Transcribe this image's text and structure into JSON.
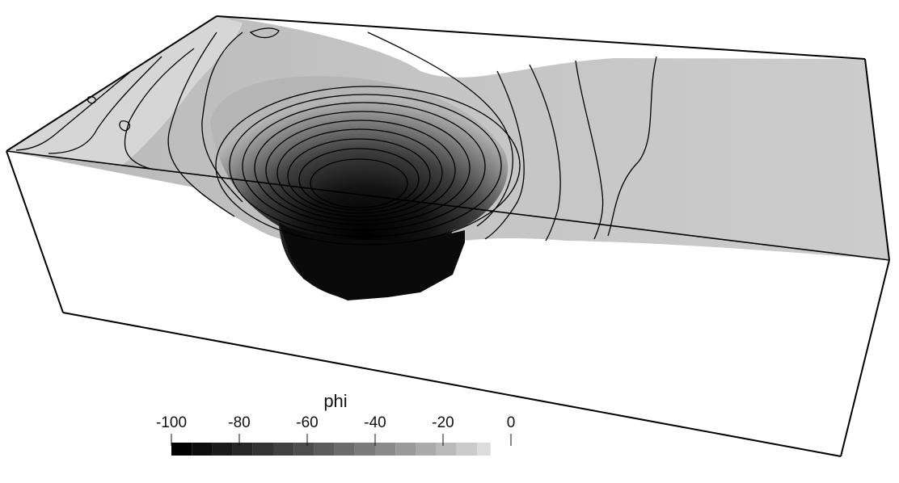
{
  "colorbar": {
    "title": "phi",
    "range": [
      -100,
      0
    ],
    "ticks": [
      {
        "value": -100,
        "label": "-100"
      },
      {
        "value": -80,
        "label": "-80"
      },
      {
        "value": -60,
        "label": "-60"
      },
      {
        "value": -40,
        "label": "-40"
      },
      {
        "value": -20,
        "label": "-20"
      },
      {
        "value": 0,
        "label": "0"
      }
    ],
    "bands": [
      {
        "from": -100,
        "to": -94,
        "color": "#000000"
      },
      {
        "from": -94,
        "to": -88,
        "color": "#0d0d0d"
      },
      {
        "from": -88,
        "to": -82,
        "color": "#1a1a1a"
      },
      {
        "from": -82,
        "to": -76,
        "color": "#262626"
      },
      {
        "from": -76,
        "to": -70,
        "color": "#333333"
      },
      {
        "from": -70,
        "to": -64,
        "color": "#404040"
      },
      {
        "from": -64,
        "to": -58,
        "color": "#4d4d4d"
      },
      {
        "from": -58,
        "to": -52,
        "color": "#5c5c5c"
      },
      {
        "from": -52,
        "to": -46,
        "color": "#6b6b6b"
      },
      {
        "from": -46,
        "to": -40,
        "color": "#7a7a7a"
      },
      {
        "from": -40,
        "to": -34,
        "color": "#8a8a8a"
      },
      {
        "from": -34,
        "to": -28,
        "color": "#9a9a9a"
      },
      {
        "from": -28,
        "to": -22,
        "color": "#aaaaaa"
      },
      {
        "from": -22,
        "to": -16,
        "color": "#bababa"
      },
      {
        "from": -16,
        "to": -10,
        "color": "#cacaca"
      },
      {
        "from": -10,
        "to": -6,
        "color": "#dcdcdc"
      }
    ]
  },
  "surface": {
    "base_color": "#c8c8c8",
    "well_color": "#000000",
    "contour_color": "#000000",
    "frame_color": "#000000"
  }
}
